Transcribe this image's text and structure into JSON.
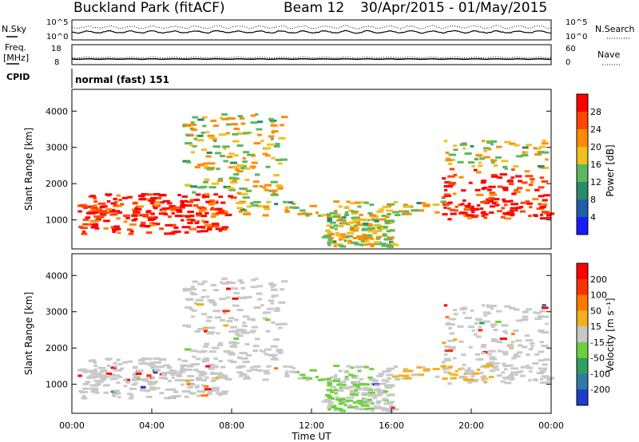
{
  "header": {
    "title": "Buckland Park (fitACF)",
    "beam": "Beam 12",
    "dates": "30/Apr/2015 - 01/May/2015"
  },
  "chart_data": [
    {
      "type": "line",
      "name": "noise",
      "left_label": "N.Sky",
      "right_label": "N.Search",
      "left_ticks": [
        "10^5",
        "10^0"
      ],
      "right_ticks": [
        "10^5",
        "10^0"
      ]
    },
    {
      "type": "line",
      "name": "frequency-nave",
      "left_label": "Freq.",
      "left_unit": "[MHz]",
      "right_label": "Nave",
      "left_ticks": [
        "18",
        "8"
      ],
      "right_ticks": [
        "60",
        "0"
      ]
    },
    {
      "type": "table",
      "name": "cpid",
      "label": "CPID",
      "text": "normal (fast) 151"
    },
    {
      "type": "heatmap",
      "name": "power",
      "ylabel": "Slant Range [km]",
      "yticks": [
        1000,
        2000,
        3000,
        4000
      ],
      "ylim": [
        200,
        4600
      ],
      "xlim": [
        0,
        24
      ],
      "colorbar": {
        "label": "Power [dB]",
        "ticks": [
          "4",
          "8",
          "12",
          "16",
          "20",
          "24",
          "28"
        ],
        "colors": [
          "#1a1aff",
          "#1f5fa8",
          "#2a8a6a",
          "#5cb85c",
          "#f0c020",
          "#ff8c00",
          "#ff4500",
          "#ff0000"
        ]
      }
    },
    {
      "type": "heatmap",
      "name": "velocity",
      "ylabel": "Slant Range [km]",
      "yticks": [
        1000,
        2000,
        3000,
        4000
      ],
      "ylim": [
        200,
        4600
      ],
      "xlim": [
        0,
        24
      ],
      "xlabel": "Time UT",
      "xticks": [
        "00:00",
        "04:00",
        "08:00",
        "12:00",
        "16:00",
        "20:00",
        "00:00"
      ],
      "colorbar": {
        "label": "Velocity [m s⁻¹]",
        "ticks": [
          "200",
          "100",
          "50",
          "15",
          "-15",
          "-50",
          "-100",
          "-200"
        ],
        "colors": [
          "#1e3cc8",
          "#2e7ba6",
          "#2f9f5f",
          "#6fcf3f",
          "#c8c8c8",
          "#f0b020",
          "#ff7800",
          "#ff3000",
          "#ff0000"
        ]
      }
    }
  ]
}
